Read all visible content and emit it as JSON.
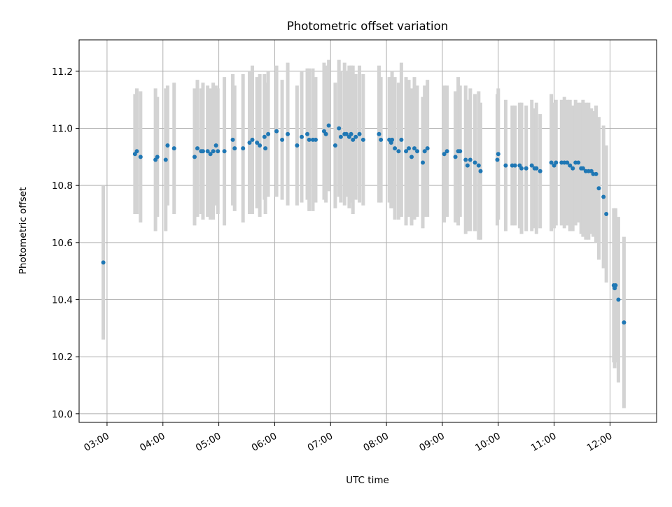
{
  "chart_data": {
    "type": "scatter",
    "title": "Photometric offset variation",
    "xlabel": "UTC time",
    "ylabel": "Photometric offset",
    "grid": true,
    "xlim": [
      "02:30",
      "12:50"
    ],
    "ylim": [
      9.97,
      11.31
    ],
    "x_ticks": [
      "03:00",
      "04:00",
      "05:00",
      "06:00",
      "07:00",
      "08:00",
      "09:00",
      "10:00",
      "11:00",
      "12:00"
    ],
    "y_ticks": [
      "10.0",
      "10.2",
      "10.4",
      "10.6",
      "10.8",
      "11.0",
      "11.2"
    ],
    "colors": {
      "points": "#1f77b4",
      "errorbars": "#d3d3d3",
      "grid": "#b0b0b0"
    },
    "series": [
      {
        "x": [
          "02:56",
          "03:30",
          "03:32",
          "03:36",
          "03:52",
          "03:54",
          "04:03",
          "04:05",
          "04:12",
          "04:34",
          "04:37",
          "04:41",
          "04:43",
          "04:48",
          "04:51",
          "04:54",
          "04:57",
          "04:59",
          "05:06",
          "05:15",
          "05:17",
          "05:26",
          "05:33",
          "05:36",
          "05:41",
          "05:44",
          "05:49",
          "05:50",
          "05:53",
          "06:02",
          "06:08",
          "06:14",
          "06:24",
          "06:29",
          "06:35",
          "06:37",
          "06:41",
          "06:44",
          "06:53",
          "06:55",
          "06:58",
          "07:05",
          "07:09",
          "07:11",
          "07:15",
          "07:17",
          "07:20",
          "07:22",
          "07:24",
          "07:27",
          "07:31",
          "07:35",
          "07:52",
          "07:54",
          "08:03",
          "08:05",
          "08:06",
          "08:09",
          "08:13",
          "08:16",
          "08:21",
          "08:24",
          "08:27",
          "08:30",
          "08:33",
          "08:39",
          "08:41",
          "08:44",
          "09:02",
          "09:05",
          "09:14",
          "09:17",
          "09:19",
          "09:25",
          "09:27",
          "09:30",
          "09:35",
          "09:39",
          "09:41",
          "09:59",
          "10:00",
          "10:08",
          "10:15",
          "10:18",
          "10:23",
          "10:25",
          "10:30",
          "10:36",
          "10:39",
          "10:41",
          "10:45",
          "10:57",
          "11:00",
          "11:02",
          "11:08",
          "11:11",
          "11:14",
          "11:17",
          "11:20",
          "11:23",
          "11:26",
          "11:29",
          "11:31",
          "11:34",
          "11:37",
          "11:40",
          "11:42",
          "11:45",
          "11:48",
          "11:53",
          "11:56",
          "12:04",
          "12:05",
          "12:06",
          "12:09",
          "12:15"
        ],
        "y": [
          10.53,
          10.91,
          10.92,
          10.9,
          10.89,
          10.9,
          10.89,
          10.94,
          10.93,
          10.9,
          10.93,
          10.92,
          10.92,
          10.92,
          10.91,
          10.92,
          10.94,
          10.92,
          10.92,
          10.96,
          10.93,
          10.93,
          10.95,
          10.96,
          10.95,
          10.94,
          10.97,
          10.93,
          10.98,
          10.99,
          10.96,
          10.98,
          10.94,
          10.97,
          10.98,
          10.96,
          10.96,
          10.96,
          10.99,
          10.98,
          11.01,
          10.94,
          11.0,
          10.97,
          10.98,
          10.98,
          10.97,
          10.98,
          10.96,
          10.97,
          10.98,
          10.96,
          10.98,
          10.96,
          10.96,
          10.95,
          10.96,
          10.93,
          10.92,
          10.96,
          10.92,
          10.93,
          10.9,
          10.93,
          10.92,
          10.88,
          10.92,
          10.93,
          10.91,
          10.92,
          10.9,
          10.92,
          10.92,
          10.89,
          10.87,
          10.89,
          10.88,
          10.87,
          10.85,
          10.89,
          10.91,
          10.87,
          10.87,
          10.87,
          10.87,
          10.86,
          10.86,
          10.87,
          10.86,
          10.86,
          10.85,
          10.88,
          10.87,
          10.88,
          10.88,
          10.88,
          10.88,
          10.87,
          10.86,
          10.88,
          10.88,
          10.86,
          10.86,
          10.85,
          10.85,
          10.85,
          10.84,
          10.84,
          10.79,
          10.76,
          10.7,
          10.45,
          10.44,
          10.45,
          10.4,
          10.32
        ],
        "yerr": [
          0.27,
          0.21,
          0.22,
          0.23,
          0.25,
          0.21,
          0.25,
          0.21,
          0.23,
          0.24,
          0.24,
          0.22,
          0.24,
          0.23,
          0.23,
          0.24,
          0.21,
          0.22,
          0.26,
          0.23,
          0.22,
          0.26,
          0.25,
          0.26,
          0.23,
          0.25,
          0.22,
          0.23,
          0.22,
          0.23,
          0.21,
          0.25,
          0.21,
          0.23,
          0.23,
          0.25,
          0.25,
          0.22,
          0.24,
          0.24,
          0.23,
          0.22,
          0.24,
          0.23,
          0.25,
          0.22,
          0.25,
          0.24,
          0.26,
          0.22,
          0.24,
          0.23,
          0.24,
          0.22,
          0.22,
          0.23,
          0.24,
          0.25,
          0.24,
          0.27,
          0.26,
          0.24,
          0.24,
          0.25,
          0.23,
          0.23,
          0.23,
          0.24,
          0.24,
          0.23,
          0.23,
          0.26,
          0.23,
          0.26,
          0.23,
          0.25,
          0.24,
          0.26,
          0.24,
          0.23,
          0.23,
          0.23,
          0.21,
          0.21,
          0.22,
          0.23,
          0.22,
          0.23,
          0.21,
          0.23,
          0.2,
          0.24,
          0.22,
          0.22,
          0.22,
          0.23,
          0.22,
          0.23,
          0.22,
          0.22,
          0.21,
          0.23,
          0.24,
          0.24,
          0.24,
          0.22,
          0.22,
          0.24,
          0.25,
          0.25,
          0.24,
          0.27,
          0.28,
          0.27,
          0.29,
          0.3
        ]
      }
    ]
  }
}
